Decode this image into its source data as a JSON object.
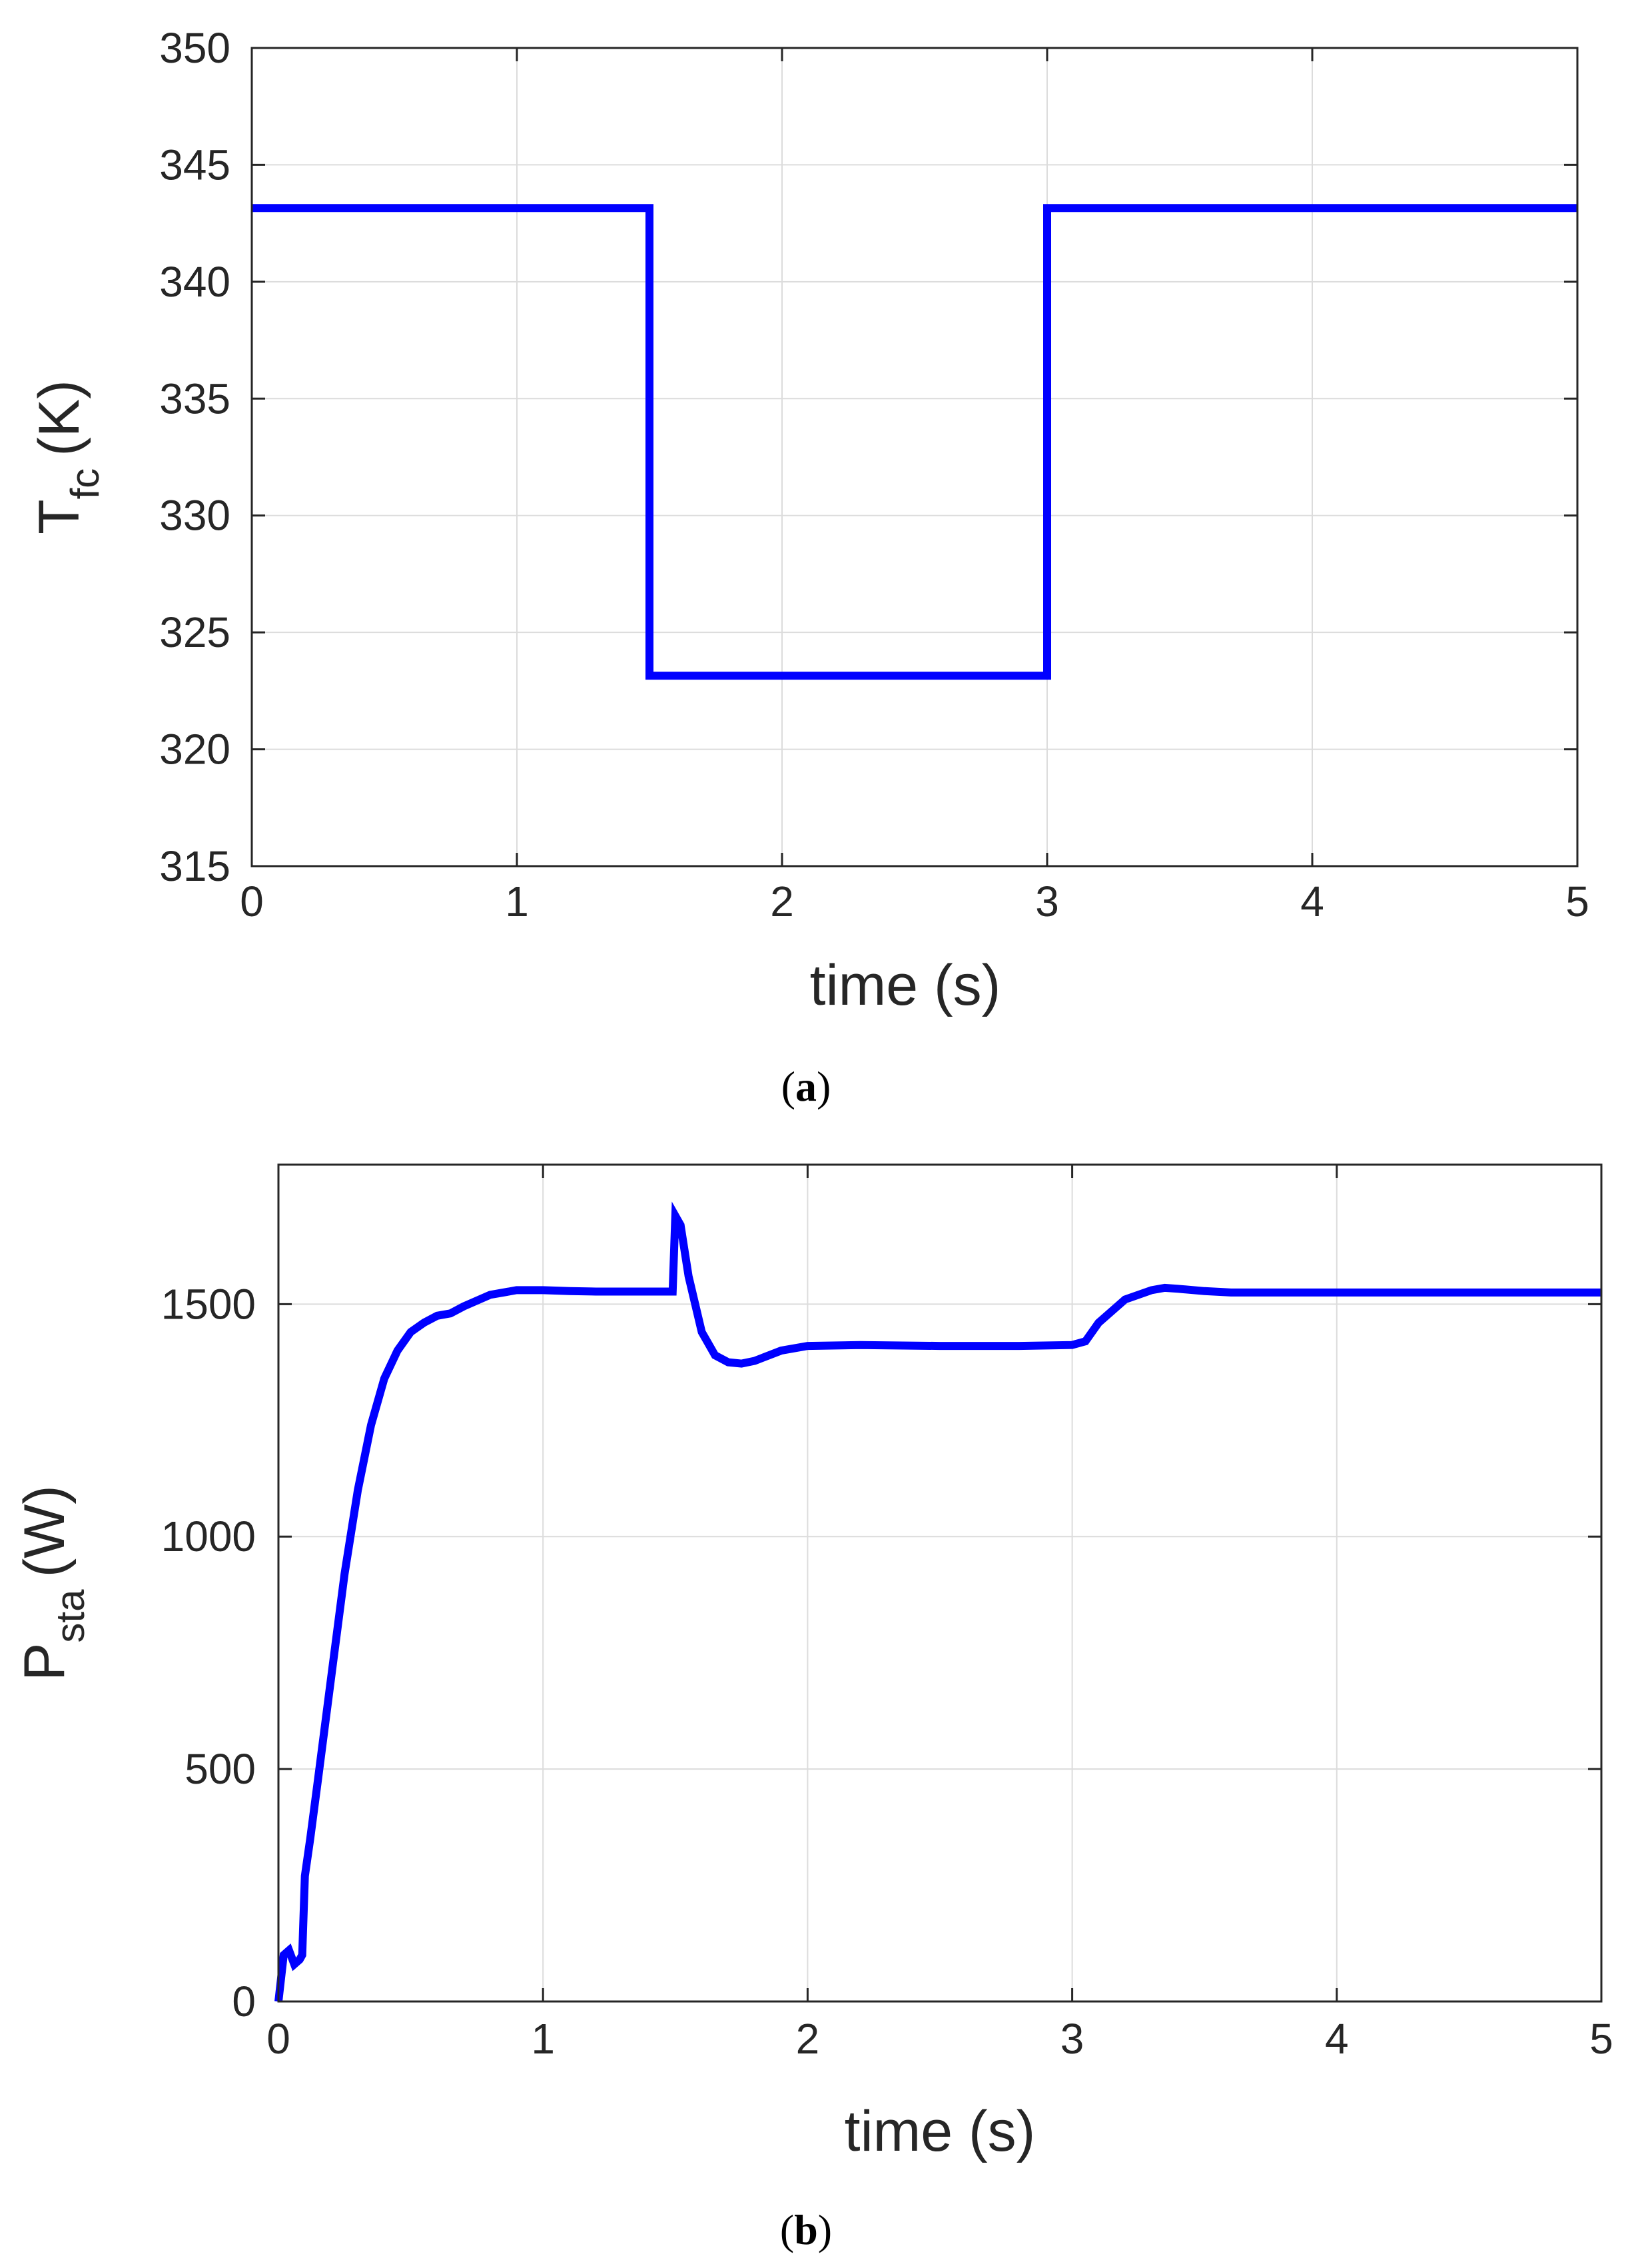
{
  "colors": {
    "series": "#0000ff",
    "grid": "#dcdcdc",
    "axis": "#262626"
  },
  "chart_data": [
    {
      "panel": "(a)",
      "panel_letter": "a",
      "type": "line",
      "xlabel": "time (s)",
      "ylabel_main": "T",
      "ylabel_sub": "fc",
      "ylabel_unit": "(K)",
      "xlim": [
        0,
        5
      ],
      "ylim": [
        315,
        350
      ],
      "grid": true,
      "xticks": [
        "0",
        "1",
        "2",
        "3",
        "4",
        "5"
      ],
      "yticks": [
        "315",
        "320",
        "325",
        "330",
        "335",
        "340",
        "345",
        "350"
      ],
      "series": [
        {
          "x": [
            0,
            1.5,
            1.5,
            3.0,
            3.0,
            5.0
          ],
          "y": [
            343.15,
            343.15,
            323.15,
            323.15,
            343.15,
            343.15
          ]
        }
      ]
    },
    {
      "panel": "(b)",
      "panel_letter": "b",
      "type": "line",
      "xlabel": "time (s)",
      "ylabel_main": "P",
      "ylabel_sub": "sta",
      "ylabel_unit": "(W)",
      "xlim": [
        0,
        5
      ],
      "ylim": [
        0,
        1800
      ],
      "grid": true,
      "xticks": [
        "0",
        "1",
        "2",
        "3",
        "4",
        "5"
      ],
      "yticks": [
        "0",
        "500",
        "1000",
        "1500"
      ],
      "series": [
        {
          "x": [
            0,
            0.02,
            0.04,
            0.06,
            0.08,
            0.09,
            0.1,
            0.12,
            0.15,
            0.2,
            0.25,
            0.3,
            0.35,
            0.4,
            0.45,
            0.5,
            0.55,
            0.6,
            0.65,
            0.7,
            0.8,
            0.9,
            1.0,
            1.1,
            1.2,
            1.3,
            1.4,
            1.49,
            1.5,
            1.52,
            1.55,
            1.6,
            1.65,
            1.7,
            1.75,
            1.8,
            1.9,
            2.0,
            2.2,
            2.5,
            2.8,
            3.0,
            3.05,
            3.1,
            3.2,
            3.3,
            3.35,
            3.4,
            3.5,
            3.6,
            3.8,
            4.0,
            4.5,
            5.0
          ],
          "y": [
            0,
            100,
            110,
            80,
            90,
            100,
            270,
            350,
            480,
            700,
            920,
            1100,
            1240,
            1340,
            1400,
            1440,
            1460,
            1475,
            1480,
            1495,
            1520,
            1530,
            1530,
            1528,
            1527,
            1527,
            1527,
            1527,
            1690,
            1670,
            1560,
            1440,
            1390,
            1375,
            1372,
            1378,
            1400,
            1410,
            1412,
            1410,
            1410,
            1412,
            1420,
            1460,
            1510,
            1530,
            1535,
            1533,
            1528,
            1525,
            1525,
            1525,
            1525,
            1525
          ]
        }
      ]
    }
  ]
}
